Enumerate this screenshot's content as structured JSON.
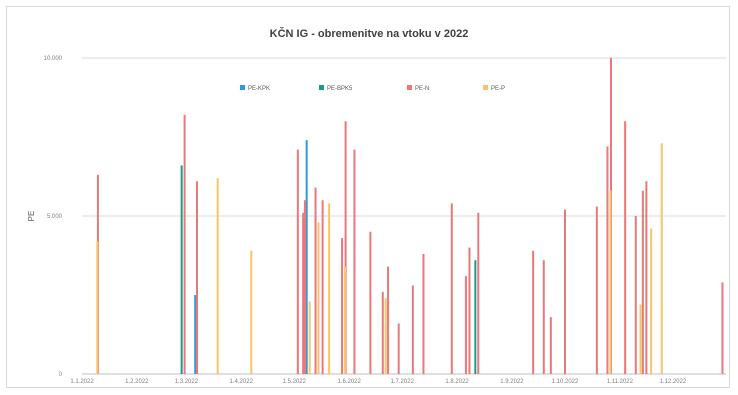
{
  "chart_data": {
    "type": "bar",
    "title": "KČN IG - obremenitve na vtoku v 2022",
    "xlabel": "",
    "ylabel": "PE",
    "ylim": [
      0,
      10000
    ],
    "y_ticks": [
      "0",
      "5.000",
      "10.000"
    ],
    "y_tick_values": [
      0,
      5000,
      10000
    ],
    "x_ticks": [
      "1.1.2022",
      "1.2.2022",
      "1.3.2022",
      "1.4.2022",
      "1.5.2022",
      "1.6.2022",
      "1.7.2022",
      "1.8.2022",
      "1.9.2022",
      "1.10.2022",
      "1.11.2022",
      "1.12.2022"
    ],
    "x_tick_days": [
      1,
      32,
      60,
      91,
      121,
      152,
      182,
      213,
      244,
      274,
      305,
      335
    ],
    "x_domain_days": [
      1,
      365
    ],
    "grid": true,
    "legend_position": "top",
    "series": [
      {
        "name": "PE-KPK",
        "color": "#2e9bd6",
        "points": [
          {
            "day": 65,
            "value": 2500
          },
          {
            "day": 128,
            "value": 7400
          }
        ]
      },
      {
        "name": "PE-BPK5",
        "color": "#1b998b",
        "points": [
          {
            "day": 58,
            "value": 6600
          },
          {
            "day": 224,
            "value": 3600
          }
        ]
      },
      {
        "name": "PE-N",
        "color": "#e8787a",
        "points": [
          {
            "day": 10,
            "value": 6300
          },
          {
            "day": 59,
            "value": 8200
          },
          {
            "day": 66,
            "value": 6100
          },
          {
            "day": 123,
            "value": 7100
          },
          {
            "day": 126,
            "value": 5100
          },
          {
            "day": 127,
            "value": 5500
          },
          {
            "day": 133,
            "value": 5900
          },
          {
            "day": 137,
            "value": 5500
          },
          {
            "day": 148,
            "value": 4300
          },
          {
            "day": 150,
            "value": 8000
          },
          {
            "day": 155,
            "value": 7100
          },
          {
            "day": 164,
            "value": 4500
          },
          {
            "day": 171,
            "value": 2600
          },
          {
            "day": 174,
            "value": 3400
          },
          {
            "day": 180,
            "value": 1600
          },
          {
            "day": 188,
            "value": 2800
          },
          {
            "day": 194,
            "value": 3800
          },
          {
            "day": 210,
            "value": 5400
          },
          {
            "day": 218,
            "value": 3100
          },
          {
            "day": 220,
            "value": 4000
          },
          {
            "day": 225,
            "value": 5100
          },
          {
            "day": 256,
            "value": 3900
          },
          {
            "day": 262,
            "value": 3600
          },
          {
            "day": 266,
            "value": 1800
          },
          {
            "day": 274,
            "value": 5200
          },
          {
            "day": 292,
            "value": 5300
          },
          {
            "day": 298,
            "value": 7200
          },
          {
            "day": 300,
            "value": 10000
          },
          {
            "day": 308,
            "value": 8000
          },
          {
            "day": 314,
            "value": 5000
          },
          {
            "day": 318,
            "value": 5800
          },
          {
            "day": 320,
            "value": 6100
          },
          {
            "day": 363,
            "value": 2900
          }
        ]
      },
      {
        "name": "PE-P",
        "color": "#f5c56b",
        "points": [
          {
            "day": 9,
            "value": 4200
          },
          {
            "day": 77,
            "value": 6200
          },
          {
            "day": 96,
            "value": 3900
          },
          {
            "day": 129,
            "value": 2300
          },
          {
            "day": 134,
            "value": 4800
          },
          {
            "day": 140,
            "value": 5400
          },
          {
            "day": 149,
            "value": 3400
          },
          {
            "day": 172,
            "value": 2400
          },
          {
            "day": 299,
            "value": 5800
          },
          {
            "day": 316,
            "value": 2200
          },
          {
            "day": 322,
            "value": 4600
          },
          {
            "day": 328,
            "value": 7300
          }
        ]
      }
    ]
  }
}
